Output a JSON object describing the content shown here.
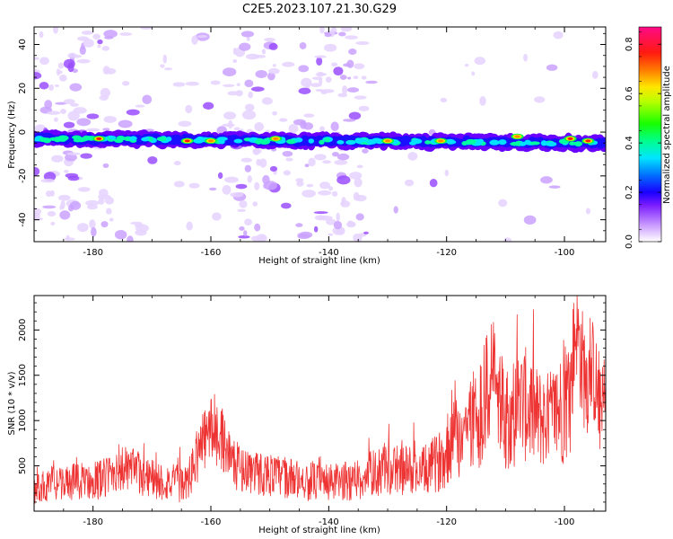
{
  "figure_title": "C2E5.2023.107.21.30.G29",
  "colors": {
    "snr_line": "#ee3333",
    "axis": "#000000"
  },
  "chart_data": [
    {
      "type": "heatmap",
      "title": "C2E5.2023.107.21.30.G29",
      "xlabel": "Height of straight line (km)",
      "ylabel": "Frequency (Hz)",
      "xlim": [
        -190,
        -93
      ],
      "ylim": [
        -50,
        48
      ],
      "xticks": [
        -180,
        -160,
        -140,
        -120,
        -100
      ],
      "xtick_labels": [
        "-180",
        "-160",
        "-140",
        "-120",
        "-100"
      ],
      "yticks": [
        -40,
        -20,
        0,
        20,
        40
      ],
      "ytick_labels": [
        "-40",
        "-20",
        "0",
        "20",
        "40"
      ],
      "colorbar": {
        "label": "Normalized spectral amplitude",
        "range": [
          0.0,
          0.87
        ],
        "ticks": [
          0.0,
          0.2,
          0.4,
          0.6,
          0.8
        ],
        "tick_labels": [
          "0.0",
          "0.2",
          "0.4",
          "0.6",
          "0.8"
        ],
        "colormap": "gist_rainbow_r (white at 0)"
      },
      "dominant_band": {
        "frequency_hz_start": -3,
        "frequency_hz_end": -5,
        "x_range": [
          -190,
          -93
        ],
        "description": "continuous narrow band of high amplitude near -3 Hz"
      },
      "peaks": [
        {
          "x": -179,
          "freq": -3,
          "amplitude": 0.8
        },
        {
          "x": -164,
          "freq": -4,
          "amplitude": 0.87
        },
        {
          "x": -160,
          "freq": -4,
          "amplitude": 0.7
        },
        {
          "x": -149,
          "freq": -3,
          "amplitude": 0.75
        },
        {
          "x": -130,
          "freq": -4,
          "amplitude": 0.6
        },
        {
          "x": -121,
          "freq": -4,
          "amplitude": 0.7
        },
        {
          "x": -108,
          "freq": -2,
          "amplitude": 0.55
        },
        {
          "x": -99,
          "freq": -3,
          "amplitude": 0.8
        },
        {
          "x": -96,
          "freq": -4,
          "amplitude": 0.85
        }
      ],
      "noise_columns_x": [
        -187,
        -181,
        -153,
        -141,
        -138
      ]
    },
    {
      "type": "line",
      "xlabel": "Height of straight line (km)",
      "ylabel": "SNR (10 * v/v)",
      "xlim": [
        -190,
        -93
      ],
      "ylim": [
        0,
        2380
      ],
      "xticks": [
        -180,
        -160,
        -140,
        -120,
        -100
      ],
      "xtick_labels": [
        "-180",
        "-160",
        "-140",
        "-120",
        "-100"
      ],
      "yticks": [
        500,
        1000,
        1500,
        2000
      ],
      "ytick_labels": [
        "500",
        "1000",
        "1500",
        "2000"
      ],
      "series": [
        {
          "name": "SNR",
          "color": "#ee3333",
          "x": [
            -190,
            -186,
            -182,
            -178,
            -176,
            -172,
            -168,
            -164,
            -162,
            -160,
            -158,
            -156,
            -152,
            -148,
            -144,
            -140,
            -136,
            -132,
            -128,
            -124,
            -121,
            -119,
            -117,
            -115,
            -113,
            -112,
            -111,
            -109,
            -107,
            -105,
            -103,
            -101,
            -99,
            -98,
            -97,
            -96,
            -95,
            -94,
            -93
          ],
          "y": [
            250,
            300,
            330,
            360,
            480,
            420,
            320,
            300,
            680,
            920,
            800,
            500,
            420,
            380,
            330,
            310,
            340,
            430,
            460,
            430,
            560,
            780,
            900,
            1050,
            1300,
            1650,
            1100,
            1050,
            1200,
            1050,
            1000,
            1100,
            1300,
            2100,
            1600,
            1450,
            1550,
            1100,
            1200
          ],
          "spread": [
            140,
            160,
            170,
            190,
            230,
            210,
            180,
            170,
            280,
            300,
            300,
            220,
            210,
            190,
            180,
            170,
            190,
            220,
            240,
            230,
            280,
            380,
            450,
            520,
            580,
            650,
            520,
            500,
            550,
            480,
            450,
            520,
            620,
            500,
            560,
            520,
            500,
            400,
            380
          ]
        }
      ]
    }
  ]
}
